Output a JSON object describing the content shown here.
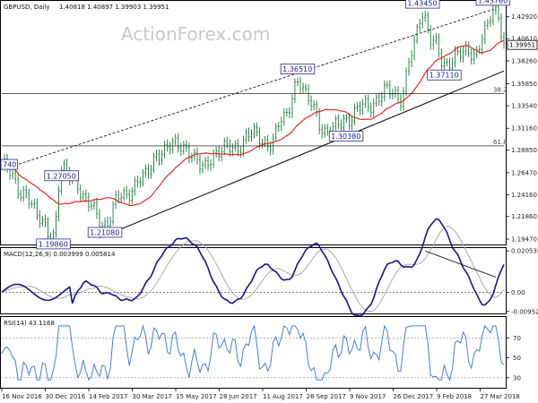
{
  "watermark": "ActionForex.com",
  "chart_data": [
    {
      "type": "candlestick",
      "title": "GBPUSD, Daily",
      "ohlc_label": "1.40818 1.40897 1.39903 1.39951",
      "y_ticks": [
        1.4292,
        1.4061,
        1.3826,
        1.3585,
        1.3354,
        1.3116,
        1.2885,
        1.2647,
        1.2416,
        1.2186,
        1.1947
      ],
      "ylim": [
        1.19,
        1.445
      ],
      "current_price": "1.39951",
      "callouts": [
        {
          "label": "1.43450",
          "date_index": 155,
          "value": 1.4345
        },
        {
          "label": "1.43760",
          "date_index": 181,
          "value": 1.4376
        },
        {
          "label": "1.36510",
          "date_index": 109,
          "value": 1.3651
        },
        {
          "label": "1.30380",
          "date_index": 120,
          "value": 1.3038
        },
        {
          "label": "1.37110",
          "date_index": 163,
          "value": 1.3711
        },
        {
          "label": "1.27050",
          "date_index": 22,
          "value": 1.2705
        },
        {
          "label": "1.21080",
          "date_index": 38,
          "value": 1.2108
        },
        {
          "label": "1.19860",
          "date_index": 19,
          "value": 1.1986
        },
        {
          "label": "740",
          "date_index": 0,
          "value": 1.274
        }
      ],
      "fib_levels": [
        {
          "label": "38.2",
          "value": 1.348
        },
        {
          "label": "61.8",
          "value": 1.293
        }
      ],
      "x_ticks": [
        "16 Nov 2016",
        "30 Dec 2016",
        "14 Feb 2017",
        "30 Mar 2017",
        "15 May 2017",
        "28 Jun 2017",
        "11 Aug 2017",
        "26 Sep 2017",
        "9 Nov 2017",
        "26 Dec 2017",
        "9 Feb 2018",
        "27 Mar 2018"
      ]
    },
    {
      "type": "line",
      "title": "MACD(12,26,9) 0.003999 0.005814",
      "y_ticks": [
        0.020535,
        0.0,
        -0.009525
      ],
      "ylim": [
        -0.0105,
        0.0215
      ]
    },
    {
      "type": "line",
      "title": "RSI(14) 43.1168",
      "y_ticks": [
        70,
        50,
        30
      ],
      "ylim": [
        20,
        90
      ]
    }
  ],
  "colors": {
    "candle": "#1a7a3a",
    "ma": "#e21b1b",
    "macd": "#16168a",
    "signal": "#aaaaaa",
    "rsi": "#4a7fd0",
    "callout_border": "#2b2b8c"
  }
}
